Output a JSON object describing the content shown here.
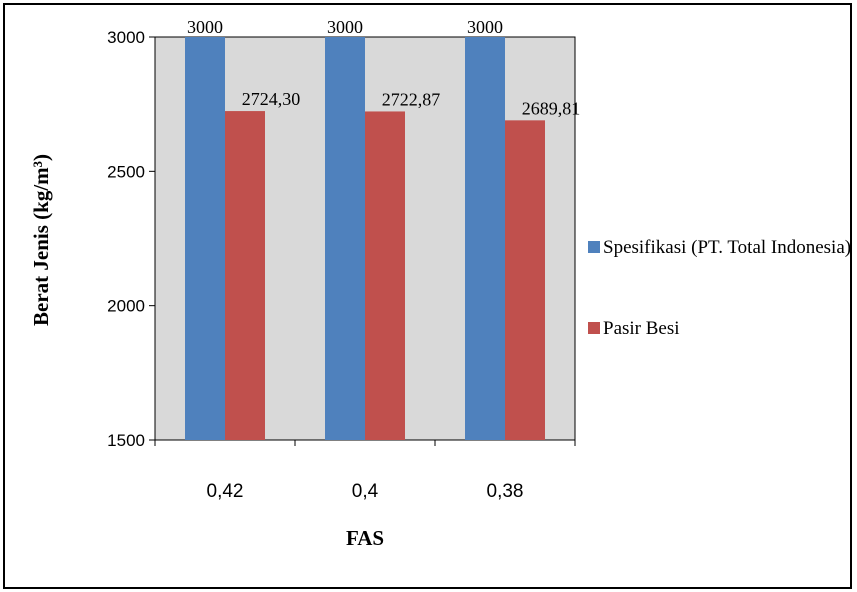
{
  "chart_data": {
    "type": "bar",
    "categories": [
      "0,42",
      "0,4",
      "0,38"
    ],
    "series": [
      {
        "name": "Spesifikasi (PT. Total Indonesia)",
        "values": [
          3000,
          3000,
          3000
        ],
        "labels": [
          "3000",
          "3000",
          "3000"
        ],
        "color": "#4f81bd"
      },
      {
        "name": "Pasir Besi",
        "values": [
          2724.3,
          2722.87,
          2689.81
        ],
        "labels": [
          "2724,30",
          "2722,87",
          "2689,81"
        ],
        "color": "#c0504d"
      }
    ],
    "xlabel": "FAS",
    "ylabel": "Berat Jenis  (kg/m³)",
    "ylim": [
      1500,
      3000
    ],
    "yticks": [
      "1500",
      "2000",
      "2500",
      "3000"
    ],
    "grid": false,
    "plot_background": "#d9d9d9",
    "legend_placement": "right"
  }
}
